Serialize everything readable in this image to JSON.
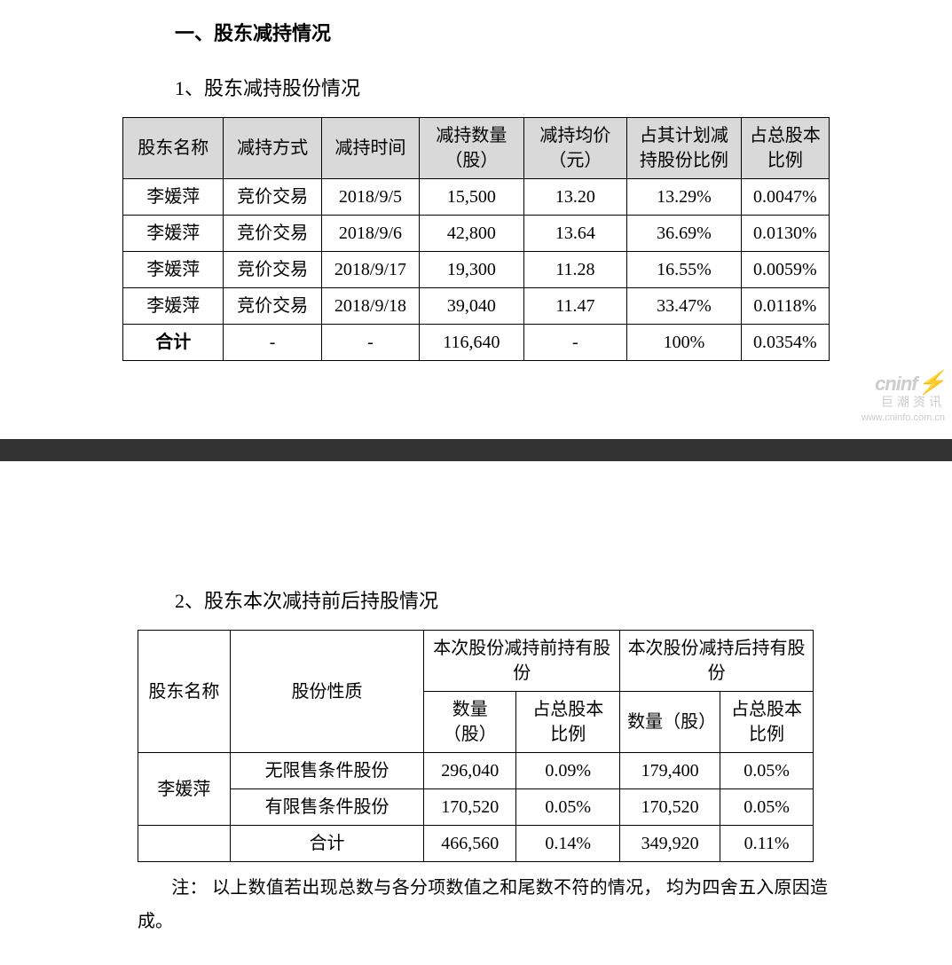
{
  "section1": {
    "heading": "一、股东减持情况",
    "sub1": "1、股东减持股份情况",
    "sub2": "2、股东本次减持前后持股情况"
  },
  "table1": {
    "headers": {
      "h1": "股东名称",
      "h2": "减持方式",
      "h3": "减持时间",
      "h4": "减持数量（股）",
      "h5": "减持均价（元）",
      "h6": "占其计划减持股份比例",
      "h7": "占总股本比例"
    },
    "rows": [
      {
        "c1": "李媛萍",
        "c2": "竞价交易",
        "c3": "2018/9/5",
        "c4": "15,500",
        "c5": "13.20",
        "c6": "13.29%",
        "c7": "0.0047%"
      },
      {
        "c1": "李媛萍",
        "c2": "竞价交易",
        "c3": "2018/9/6",
        "c4": "42,800",
        "c5": "13.64",
        "c6": "36.69%",
        "c7": "0.0130%"
      },
      {
        "c1": "李媛萍",
        "c2": "竞价交易",
        "c3": "2018/9/17",
        "c4": "19,300",
        "c5": "11.28",
        "c6": "16.55%",
        "c7": "0.0059%"
      },
      {
        "c1": "李媛萍",
        "c2": "竞价交易",
        "c3": "2018/9/18",
        "c4": "39,040",
        "c5": "11.47",
        "c6": "33.47%",
        "c7": "0.0118%"
      }
    ],
    "total": {
      "c1": "合计",
      "c2": "-",
      "c3": "-",
      "c4": "116,640",
      "c5": "-",
      "c6": "100%",
      "c7": "0.0354%"
    }
  },
  "watermark": {
    "main": "cninf",
    "sub": "巨潮资讯",
    "url": "www.cninfo.com.cn"
  },
  "table2": {
    "headers": {
      "h1": "股东名称",
      "h2": "股份性质",
      "h3_group": "本次股份减持前持有股份",
      "h4_group": "本次股份减持后持有股份",
      "h3a": "数量（股）",
      "h3b": "占总股本比例",
      "h4a": "数量（股）",
      "h4b": "占总股本比例"
    },
    "shareholder": "李媛萍",
    "rows": [
      {
        "type": "无限售条件股份",
        "before_qty": "296,040",
        "before_pct": "0.09%",
        "after_qty": "179,400",
        "after_pct": "0.05%"
      },
      {
        "type": "有限售条件股份",
        "before_qty": "170,520",
        "before_pct": "0.05%",
        "after_qty": "170,520",
        "after_pct": "0.05%"
      },
      {
        "type": "合计",
        "before_qty": "466,560",
        "before_pct": "0.14%",
        "after_qty": "349,920",
        "after_pct": "0.11%"
      }
    ]
  },
  "note": {
    "label": "注：",
    "text": "以上数值若出现总数与各分项数值之和尾数不符的情况， 均为四舍五入原因造成。"
  }
}
